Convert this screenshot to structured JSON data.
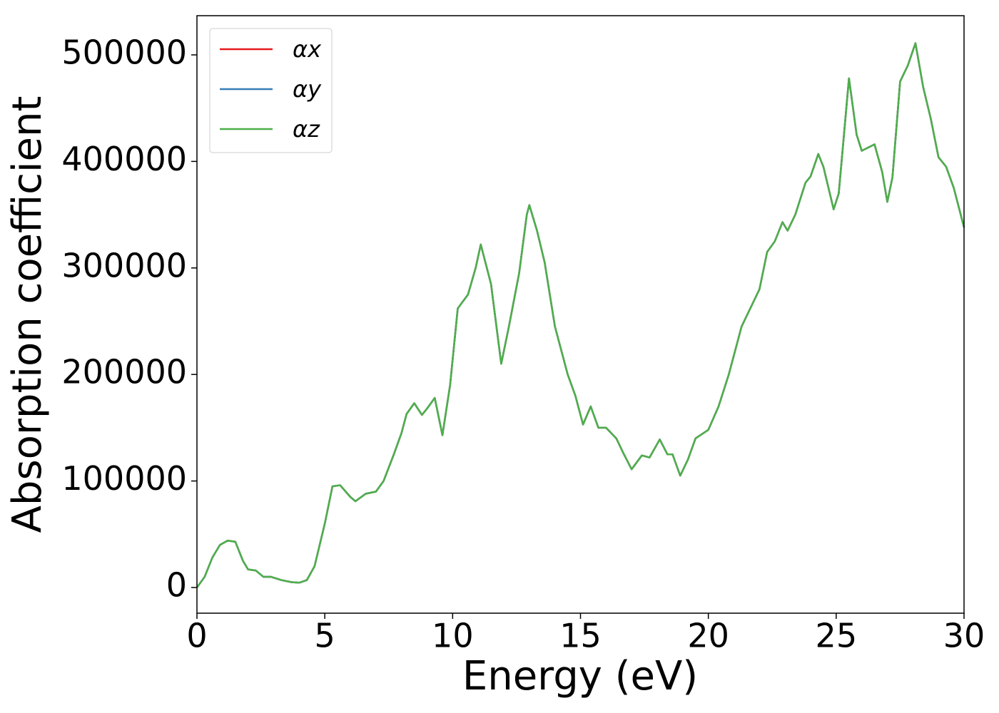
{
  "chart_data": {
    "type": "line",
    "xlabel": "Energy (eV)",
    "ylabel": "Absorption coefficient",
    "x": [
      0,
      0.3,
      0.6,
      0.9,
      1.2,
      1.5,
      1.8,
      2.0,
      2.3,
      2.6,
      2.9,
      3.3,
      3.7,
      4.0,
      4.3,
      4.6,
      5.0,
      5.3,
      5.6,
      6.0,
      6.2,
      6.6,
      7.0,
      7.3,
      7.7,
      8.0,
      8.2,
      8.5,
      8.8,
      9.0,
      9.3,
      9.6,
      9.9,
      10.2,
      10.6,
      10.9,
      11.1,
      11.5,
      11.9,
      12.2,
      12.6,
      12.9,
      13.0,
      13.3,
      13.6,
      14.0,
      14.5,
      14.8,
      15.1,
      15.4,
      15.7,
      16.0,
      16.4,
      16.7,
      17.0,
      17.4,
      17.7,
      18.1,
      18.4,
      18.6,
      18.9,
      19.2,
      19.5,
      20.0,
      20.4,
      20.8,
      21.3,
      21.8,
      22.0,
      22.3,
      22.6,
      22.9,
      23.1,
      23.4,
      23.8,
      24.0,
      24.3,
      24.5,
      24.9,
      25.1,
      25.5,
      25.8,
      26.0,
      26.5,
      26.8,
      27.0,
      27.2,
      27.5,
      27.8,
      28.1,
      28.4,
      28.7,
      29.0,
      29.3,
      29.6,
      30.0
    ],
    "series": [
      {
        "name": "αx",
        "color": "#e41a1c",
        "values": [
          0,
          10000,
          28000,
          40000,
          44000,
          43000,
          25000,
          17000,
          16000,
          10000,
          10000,
          7000,
          5000,
          4500,
          7000,
          20000,
          60000,
          95000,
          96000,
          85000,
          81000,
          88000,
          90000,
          100000,
          125000,
          145000,
          163000,
          173000,
          162000,
          168000,
          178000,
          143000,
          190000,
          262000,
          275000,
          300000,
          322000,
          285000,
          210000,
          245000,
          295000,
          350000,
          359000,
          335000,
          305000,
          245000,
          200000,
          180000,
          153000,
          170000,
          150000,
          150000,
          140000,
          125000,
          111000,
          124000,
          122000,
          139000,
          125000,
          125000,
          105000,
          120000,
          140000,
          148000,
          170000,
          200000,
          245000,
          270000,
          280000,
          315000,
          325000,
          343000,
          335000,
          350000,
          380000,
          386000,
          407000,
          395000,
          355000,
          370000,
          478000,
          425000,
          410000,
          416000,
          390000,
          362000,
          385000,
          475000,
          490000,
          511000,
          470000,
          440000,
          404000,
          395000,
          375000,
          338000
        ]
      },
      {
        "name": "αy",
        "color": "#377eb8",
        "values": [
          0,
          10000,
          28000,
          40000,
          44000,
          43000,
          25000,
          17000,
          16000,
          10000,
          10000,
          7000,
          5000,
          4500,
          7000,
          20000,
          60000,
          95000,
          96000,
          85000,
          81000,
          88000,
          90000,
          100000,
          125000,
          145000,
          163000,
          173000,
          162000,
          168000,
          178000,
          143000,
          190000,
          262000,
          275000,
          300000,
          322000,
          285000,
          210000,
          245000,
          295000,
          350000,
          359000,
          335000,
          305000,
          245000,
          200000,
          180000,
          153000,
          170000,
          150000,
          150000,
          140000,
          125000,
          111000,
          124000,
          122000,
          139000,
          125000,
          125000,
          105000,
          120000,
          140000,
          148000,
          170000,
          200000,
          245000,
          270000,
          280000,
          315000,
          325000,
          343000,
          335000,
          350000,
          380000,
          386000,
          407000,
          395000,
          355000,
          370000,
          478000,
          425000,
          410000,
          416000,
          390000,
          362000,
          385000,
          475000,
          490000,
          511000,
          470000,
          440000,
          404000,
          395000,
          375000,
          338000
        ]
      },
      {
        "name": "αz",
        "color": "#4daf4a",
        "values": [
          0,
          10000,
          28000,
          40000,
          44000,
          43000,
          25000,
          17000,
          16000,
          10000,
          10000,
          7000,
          5000,
          4500,
          7000,
          20000,
          60000,
          95000,
          96000,
          85000,
          81000,
          88000,
          90000,
          100000,
          125000,
          145000,
          163000,
          173000,
          162000,
          168000,
          178000,
          143000,
          190000,
          262000,
          275000,
          300000,
          322000,
          285000,
          210000,
          245000,
          295000,
          350000,
          359000,
          335000,
          305000,
          245000,
          200000,
          180000,
          153000,
          170000,
          150000,
          150000,
          140000,
          125000,
          111000,
          124000,
          122000,
          139000,
          125000,
          125000,
          105000,
          120000,
          140000,
          148000,
          170000,
          200000,
          245000,
          270000,
          280000,
          315000,
          325000,
          343000,
          335000,
          350000,
          380000,
          386000,
          407000,
          395000,
          355000,
          370000,
          478000,
          425000,
          410000,
          416000,
          390000,
          362000,
          385000,
          475000,
          490000,
          511000,
          470000,
          440000,
          404000,
          395000,
          375000,
          338000
        ]
      }
    ],
    "xlim": [
      0,
      30
    ],
    "xticks": [
      0,
      5,
      10,
      15,
      20,
      25,
      30
    ],
    "ylim": [
      -24100,
      536800
    ],
    "yticks": [
      0,
      100000,
      200000,
      300000,
      400000,
      500000
    ],
    "legend": "upper left",
    "grid": false
  }
}
